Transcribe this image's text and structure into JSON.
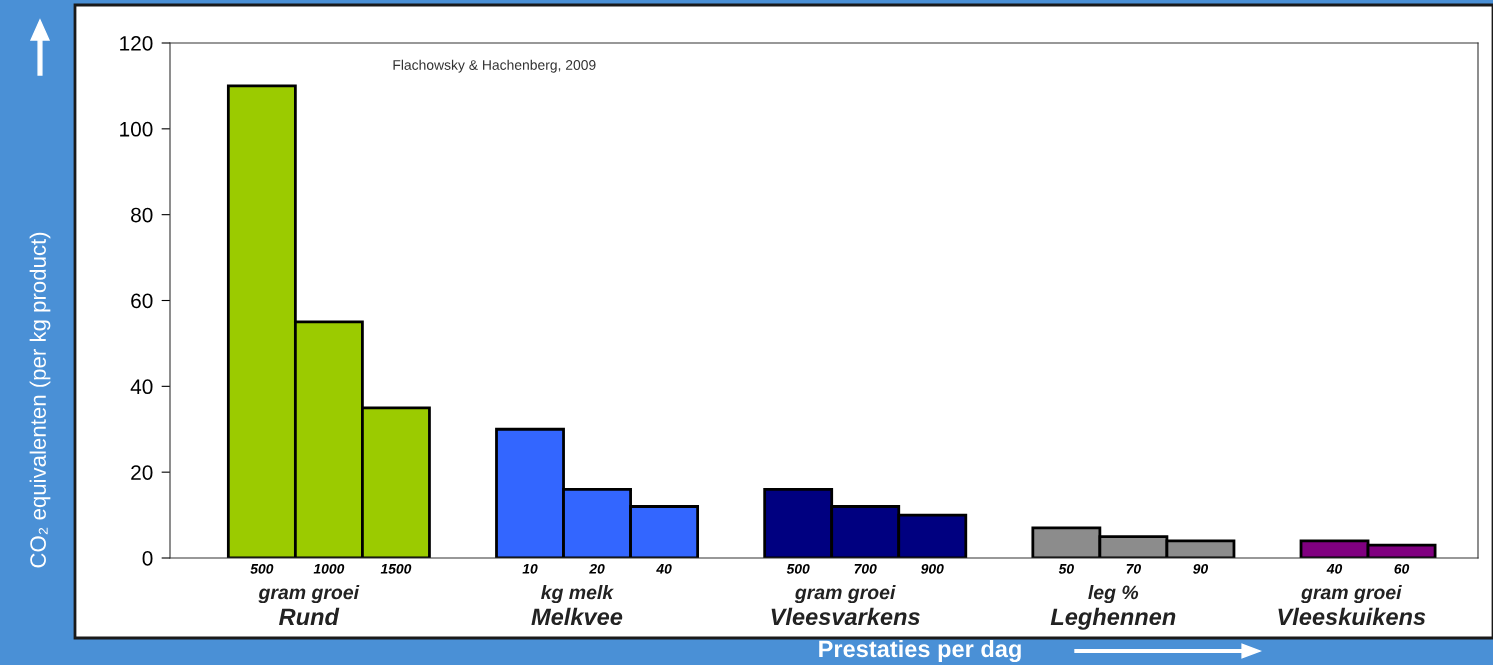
{
  "chart_data": {
    "type": "bar",
    "xlabel": "Prestaties per dag",
    "ylabel": "CO₂ equivalenten (per kg product)",
    "categories": [
      "500",
      "1000",
      "1500",
      null,
      "10",
      "20",
      "40",
      null,
      "500",
      "700",
      "900",
      null,
      "50",
      "70",
      "90",
      null,
      "40",
      "60"
    ],
    "values": [
      110,
      55,
      35,
      null,
      30,
      16,
      12,
      null,
      16,
      12,
      10,
      null,
      7,
      5,
      4,
      null,
      4,
      3
    ],
    "colors": [
      "#9bcb00",
      "#9bcb00",
      "#9bcb00",
      null,
      "#3366ff",
      "#3366ff",
      "#3366ff",
      null,
      "#000080",
      "#000080",
      "#000080",
      null,
      "#8c8c8c",
      "#8c8c8c",
      "#8c8c8c",
      null,
      "#800080",
      "#800080"
    ],
    "ylim": [
      0,
      120
    ],
    "yticks": [
      0,
      20,
      40,
      60,
      80,
      100,
      120
    ],
    "grid": false,
    "annotations": [
      "Flachowsky & Hachenberg, 2009",
      "gram groei",
      "Rund",
      "kg melk",
      "Melkvee",
      "gram groei",
      "Vleesvarkens",
      "leg %",
      "Leghennen",
      "gram groei",
      "Vleeskuikens"
    ]
  }
}
